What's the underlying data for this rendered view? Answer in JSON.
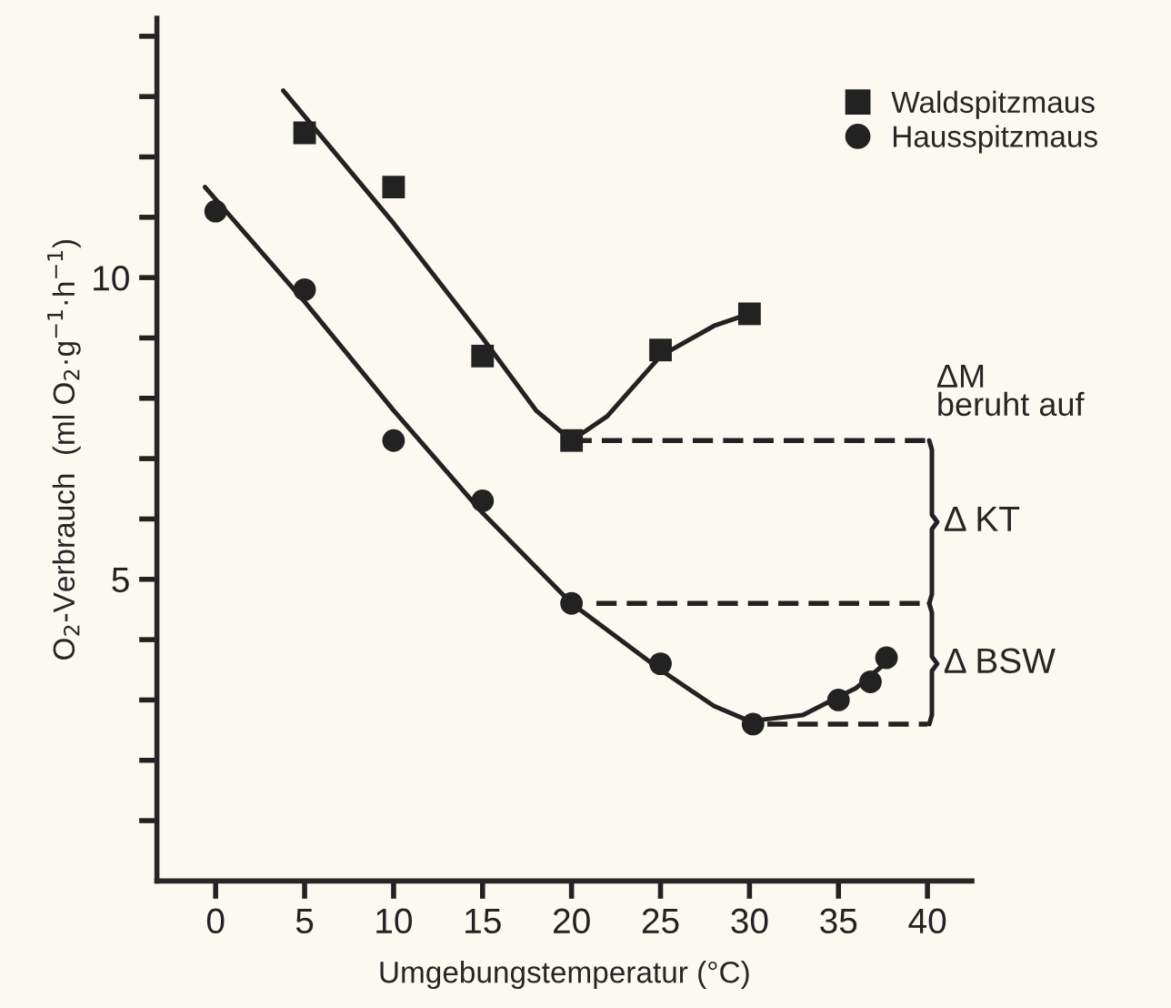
{
  "chart_data": {
    "type": "scatter",
    "xlabel": "Umgebungstemperatur (°C)",
    "ylabel": "O$_{2}$-Verbrauch  (ml O$_{2}$·g$^{−1}$·h$^{−1}$)",
    "xlim": [
      -3.3,
      42.5
    ],
    "ylim": [
      0,
      14.3
    ],
    "xticks": [
      0,
      5,
      10,
      15,
      20,
      25,
      30,
      35,
      40
    ],
    "yticks": [
      {
        "value": 1,
        "label": null
      },
      {
        "value": 2,
        "label": null
      },
      {
        "value": 3,
        "label": null
      },
      {
        "value": 4,
        "label": null
      },
      5,
      {
        "value": 6,
        "label": null
      },
      {
        "value": 7,
        "label": null
      },
      {
        "value": 8,
        "label": null
      },
      {
        "value": 9,
        "label": null
      },
      10,
      {
        "value": 11,
        "label": null
      },
      {
        "value": 12,
        "label": null
      },
      {
        "value": 13,
        "label": null
      },
      {
        "value": 14,
        "label": null
      }
    ],
    "grid": false,
    "legend": "top right",
    "series": [
      {
        "name": "Waldspitzmaus",
        "color": "#222222",
        "marker": "square",
        "x": [
          5,
          10,
          15,
          20,
          25,
          30
        ],
        "values": [
          12.4,
          11.5,
          8.7,
          7.3,
          8.8,
          9.4
        ]
      },
      {
        "name": "Hausspitzmaus",
        "color": "#222222",
        "marker": "circle",
        "x": [
          0,
          5,
          10,
          15,
          20,
          25,
          30.2,
          35,
          36.8,
          37.7
        ],
        "values": [
          11.1,
          9.8,
          7.3,
          6.3,
          4.6,
          3.6,
          2.6,
          3.0,
          3.3,
          3.7
        ]
      },
      {
        "type": "line",
        "color": "#222222",
        "line_style": "solid",
        "x": [
          3.8,
          10,
          15,
          18,
          20,
          22,
          25,
          28,
          30
        ],
        "values": [
          13.1,
          10.9,
          9.0,
          7.8,
          7.3,
          7.7,
          8.7,
          9.2,
          9.4
        ]
      },
      {
        "type": "line",
        "color": "#222222",
        "line_style": "solid",
        "x": [
          -0.6,
          5,
          10,
          15,
          20,
          25,
          28,
          30,
          33,
          36,
          38
        ],
        "values": [
          11.5,
          9.6,
          7.8,
          6.1,
          4.6,
          3.5,
          2.9,
          2.65,
          2.75,
          3.2,
          3.7
        ]
      },
      {
        "type": "line",
        "color": "#222222",
        "line_style": "dashed",
        "x": [
          20,
          40
        ],
        "values": [
          7.3,
          7.3
        ]
      },
      {
        "type": "line",
        "color": "#222222",
        "line_style": "dashed",
        "x": [
          21.4,
          40
        ],
        "values": [
          4.6,
          4.6
        ]
      },
      {
        "type": "line",
        "color": "#222222",
        "line_style": "dashed",
        "x": [
          31,
          40
        ],
        "values": [
          2.6,
          2.6
        ]
      }
    ],
    "annotations": [
      {
        "text": "ΔM\nberuht auf",
        "x": 40,
        "y": 7.3
      },
      "Δ KT",
      "Δ BSW"
    ]
  }
}
